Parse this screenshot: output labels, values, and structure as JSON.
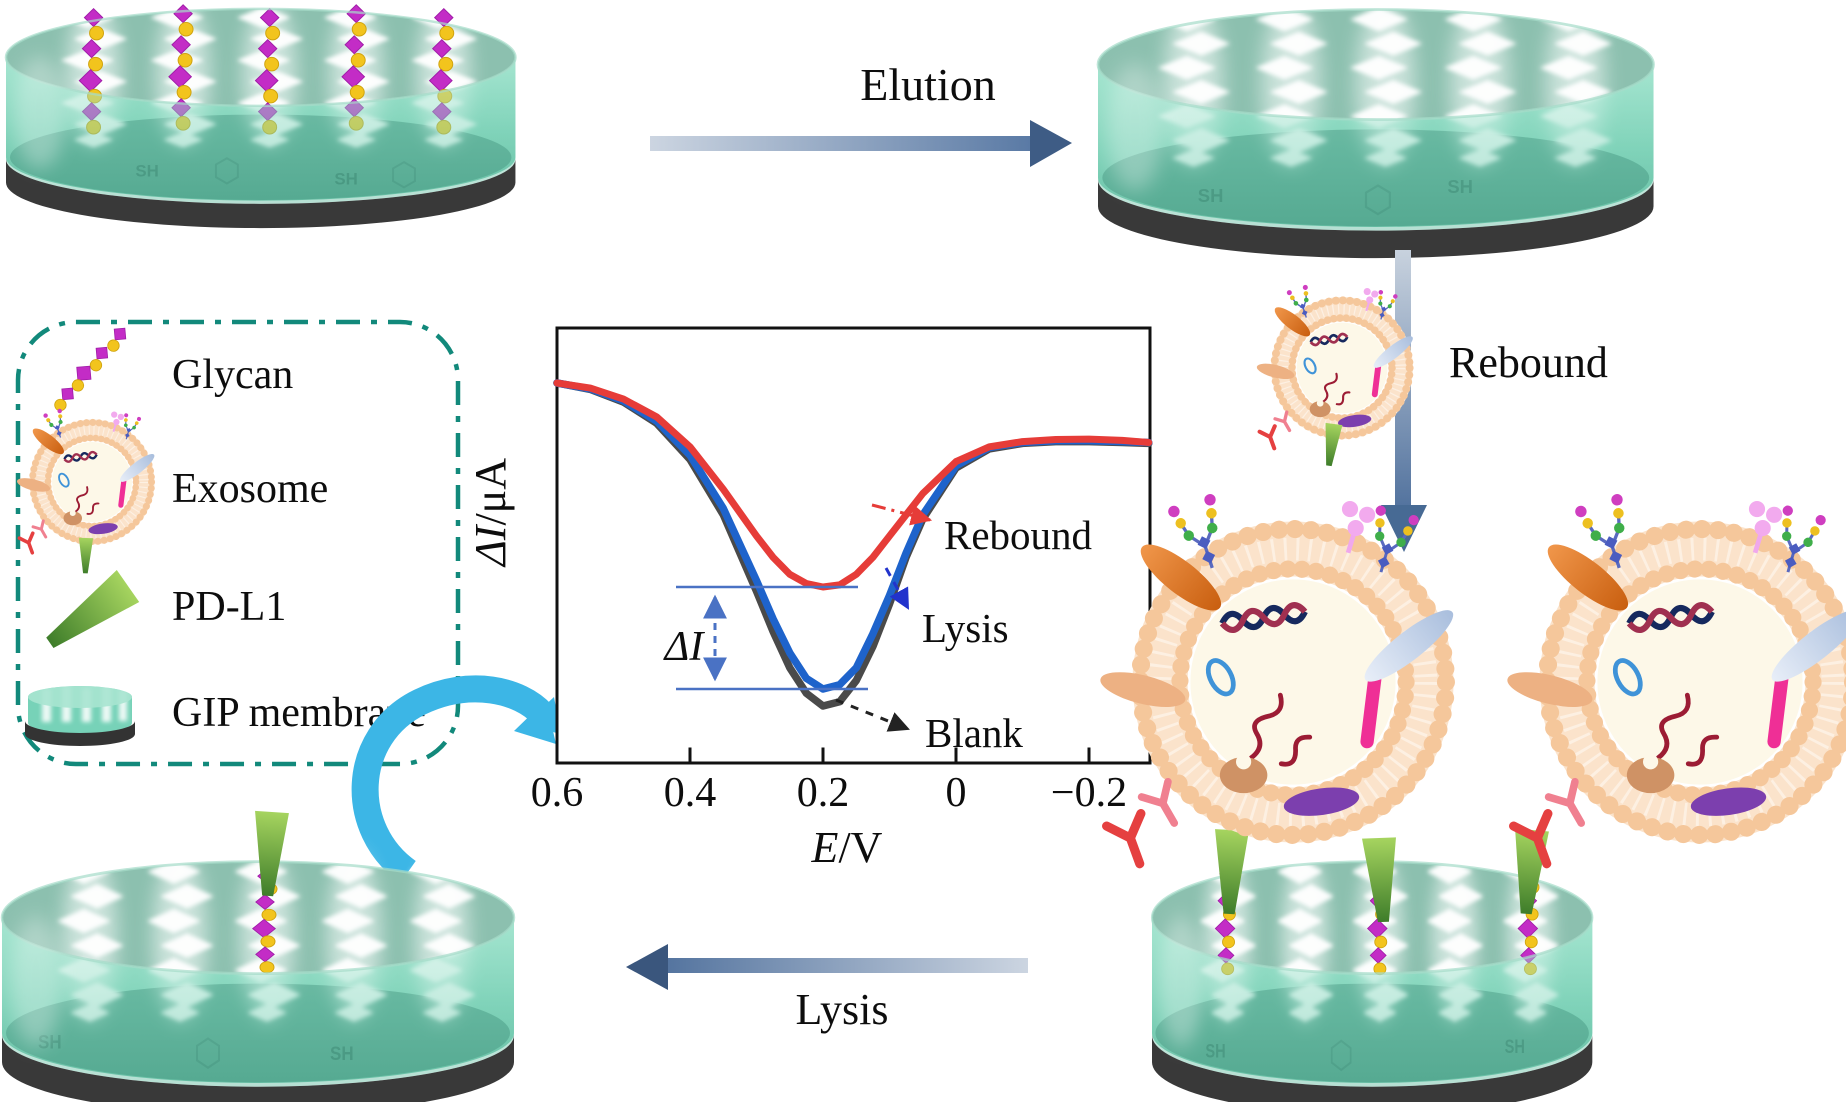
{
  "figure": {
    "steps": {
      "elution": "Elution",
      "rebound": "Rebound",
      "lysis": "Lysis"
    },
    "legend": {
      "items": [
        {
          "label": "Glycan"
        },
        {
          "label": "Exosome"
        },
        {
          "label": "PD-L1"
        },
        {
          "label": "GIP membrane"
        }
      ]
    },
    "membrane": {
      "thiol_label": "SH"
    },
    "colors": {
      "membrane_teal": "#7bd4ba",
      "membrane_rim": "#3a3a3a",
      "glycan_magenta": "#c32cc6",
      "glycan_yellow": "#f2c41d",
      "pdl1_green": "#4e8a2e",
      "flow_arrow_steel": "#54749f",
      "cycle_arrow_cyan": "#3cb6e6",
      "legend_border_teal": "#12897b"
    }
  },
  "chart_data": {
    "type": "line",
    "title": "",
    "xlabel": "E/V",
    "xlabel_italic": "E",
    "xlabel_rest": "/V",
    "ylabel": "ΔI/μA",
    "ylabel_italic": "ΔI",
    "ylabel_rest": "/μA",
    "delta_label": "ΔI",
    "grid": false,
    "x_range": [
      0.6,
      -0.29
    ],
    "x_ticks": [
      0.6,
      0.4,
      0.2,
      0,
      -0.2
    ],
    "x_tick_labels": [
      "0.6",
      "0.4",
      "0.2",
      "0",
      "−0.2"
    ],
    "y_unit": "μA",
    "x": [
      0.6,
      0.55,
      0.5,
      0.45,
      0.4,
      0.35,
      0.3,
      0.275,
      0.25,
      0.225,
      0.2,
      0.175,
      0.15,
      0.125,
      0.1,
      0.075,
      0.05,
      0,
      -0.05,
      -0.1,
      -0.15,
      -0.2,
      -0.25,
      -0.29
    ],
    "series": [
      {
        "name": "Blank",
        "color": "#4a4a4a",
        "style": "solid",
        "values": [
          0,
          -0.15,
          -0.45,
          -0.95,
          -1.8,
          -3.1,
          -4.9,
          -5.85,
          -6.7,
          -7.3,
          -7.6,
          -7.5,
          -7.0,
          -6.2,
          -5.2,
          -4.1,
          -3.2,
          -2.0,
          -1.55,
          -1.42,
          -1.38,
          -1.38,
          -1.4,
          -1.42
        ]
      },
      {
        "name": "Lysis",
        "color": "#1e63cb",
        "style": "solid",
        "values": [
          0,
          -0.14,
          -0.42,
          -0.9,
          -1.7,
          -2.95,
          -4.65,
          -5.55,
          -6.35,
          -6.95,
          -7.2,
          -7.1,
          -6.7,
          -5.9,
          -5.0,
          -4.0,
          -3.1,
          -1.95,
          -1.52,
          -1.4,
          -1.36,
          -1.36,
          -1.38,
          -1.4
        ]
      },
      {
        "name": "Rebound",
        "color": "#e63c38",
        "style": "solid",
        "values": [
          0,
          -0.12,
          -0.38,
          -0.8,
          -1.5,
          -2.5,
          -3.6,
          -4.1,
          -4.5,
          -4.72,
          -4.8,
          -4.75,
          -4.5,
          -4.1,
          -3.6,
          -3.1,
          -2.6,
          -1.85,
          -1.5,
          -1.38,
          -1.33,
          -1.32,
          -1.35,
          -1.4
        ]
      }
    ],
    "annotations": [
      {
        "label": "Rebound",
        "color": "#e63c38"
      },
      {
        "label": "Lysis",
        "color": "#2233cc"
      },
      {
        "label": "Blank",
        "color": "#222222"
      }
    ]
  }
}
